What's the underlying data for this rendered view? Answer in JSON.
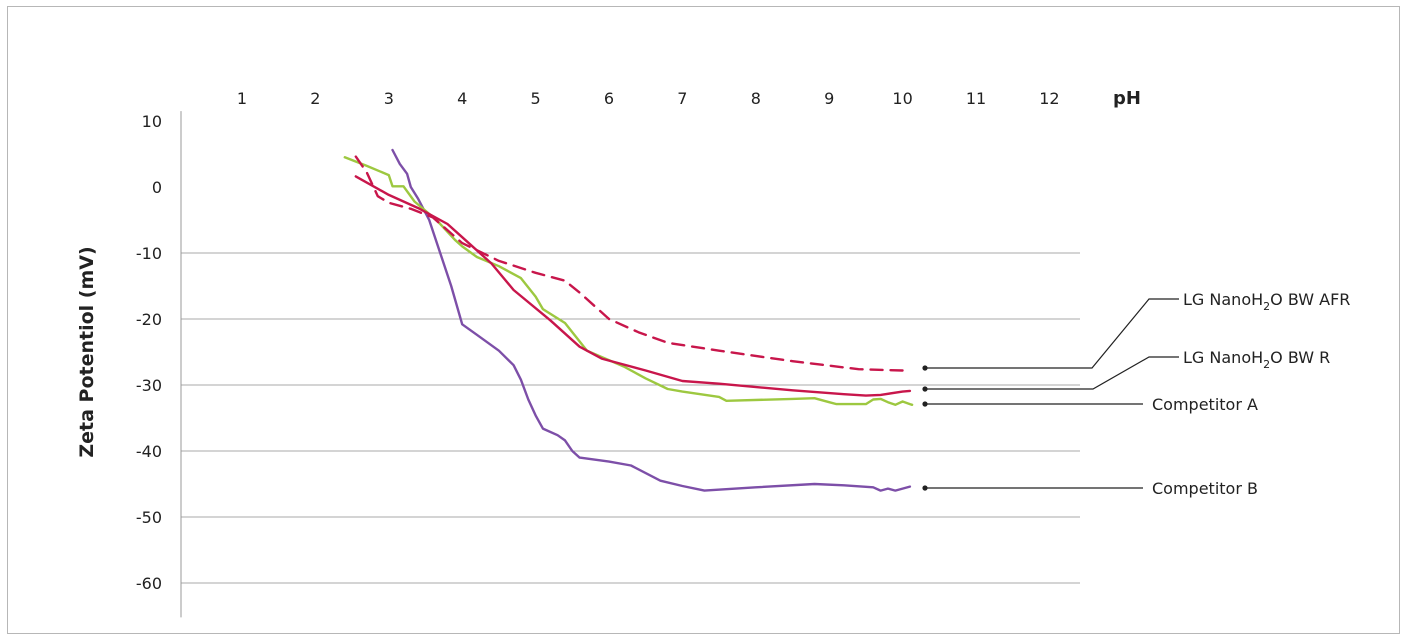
{
  "chart_data": {
    "type": "line",
    "title": "",
    "xlabel": "pH",
    "ylabel": "Zeta Potentiol (mV)",
    "x_ticks": [
      "1",
      "2",
      "3",
      "4",
      "5",
      "6",
      "7",
      "8",
      "9",
      "10",
      "11",
      "12"
    ],
    "y_ticks": [
      "10",
      "0",
      "-10",
      "-20",
      "-30",
      "-40",
      "-50",
      "-60"
    ],
    "xlim": [
      0.5,
      12.5
    ],
    "ylim": [
      -66,
      12
    ],
    "x_axis_position": "top",
    "grid": "horizontal",
    "legend_placement": "right, labels connected by leader lines",
    "series": [
      {
        "name": "LG NanoH₂O BW AFR",
        "name_parts": [
          "LG NanoH",
          "2",
          "O BW AFR"
        ],
        "color": "#c8164b",
        "style": "dashed",
        "points": [
          [
            2.55,
            4.6
          ],
          [
            2.7,
            2.2
          ],
          [
            2.85,
            -1.4
          ],
          [
            3.0,
            -2.4
          ],
          [
            3.3,
            -3.3
          ],
          [
            3.6,
            -4.6
          ],
          [
            4.0,
            -8.5
          ],
          [
            4.5,
            -11.2
          ],
          [
            5.0,
            -13.0
          ],
          [
            5.4,
            -14.2
          ],
          [
            5.6,
            -16.0
          ],
          [
            5.8,
            -18.0
          ],
          [
            6.0,
            -20.0
          ],
          [
            6.4,
            -22.0
          ],
          [
            6.8,
            -23.6
          ],
          [
            7.5,
            -24.8
          ],
          [
            8.5,
            -26.4
          ],
          [
            9.4,
            -27.6
          ],
          [
            10.0,
            -27.8
          ],
          [
            10.1,
            -27.8
          ]
        ]
      },
      {
        "name": "LG NanoH₂O BW R",
        "name_parts": [
          "LG NanoH",
          "2",
          "O BW R"
        ],
        "color": "#c8164b",
        "style": "solid",
        "points": [
          [
            2.55,
            1.6
          ],
          [
            3.0,
            -1.2
          ],
          [
            3.4,
            -3.2
          ],
          [
            3.8,
            -5.6
          ],
          [
            4.0,
            -7.6
          ],
          [
            4.4,
            -11.6
          ],
          [
            4.7,
            -15.6
          ],
          [
            5.2,
            -20.2
          ],
          [
            5.6,
            -24.2
          ],
          [
            5.9,
            -26.0
          ],
          [
            6.5,
            -27.8
          ],
          [
            7.0,
            -29.4
          ],
          [
            7.5,
            -29.8
          ],
          [
            8.5,
            -30.8
          ],
          [
            9.2,
            -31.4
          ],
          [
            9.5,
            -31.6
          ],
          [
            9.7,
            -31.5
          ],
          [
            10.0,
            -31.0
          ],
          [
            10.1,
            -30.9
          ]
        ]
      },
      {
        "name": "Competitor A",
        "color": "#9dc840",
        "style": "solid",
        "points": [
          [
            2.4,
            4.5
          ],
          [
            2.7,
            3.2
          ],
          [
            3.0,
            1.8
          ],
          [
            3.05,
            0.1
          ],
          [
            3.2,
            0.1
          ],
          [
            3.35,
            -2.2
          ],
          [
            3.65,
            -5.0
          ],
          [
            3.9,
            -8.0
          ],
          [
            4.0,
            -9.0
          ],
          [
            4.2,
            -10.6
          ],
          [
            4.5,
            -12.0
          ],
          [
            4.8,
            -13.8
          ],
          [
            5.0,
            -16.6
          ],
          [
            5.1,
            -18.5
          ],
          [
            5.4,
            -20.6
          ],
          [
            5.7,
            -24.8
          ],
          [
            6.2,
            -27.2
          ],
          [
            6.5,
            -29.0
          ],
          [
            6.8,
            -30.6
          ],
          [
            7.0,
            -31.0
          ],
          [
            7.5,
            -31.8
          ],
          [
            7.6,
            -32.4
          ],
          [
            8.5,
            -32.1
          ],
          [
            8.8,
            -32.0
          ],
          [
            9.0,
            -32.6
          ],
          [
            9.1,
            -32.9
          ],
          [
            9.5,
            -32.9
          ],
          [
            9.6,
            -32.2
          ],
          [
            9.7,
            -32.1
          ],
          [
            9.8,
            -32.6
          ],
          [
            9.9,
            -33.0
          ],
          [
            10.0,
            -32.5
          ],
          [
            10.1,
            -32.9
          ],
          [
            10.13,
            -33.0
          ]
        ]
      },
      {
        "name": "Competitor B",
        "color": "#7d4fa8",
        "style": "solid",
        "points": [
          [
            3.05,
            5.6
          ],
          [
            3.15,
            3.5
          ],
          [
            3.25,
            2.0
          ],
          [
            3.3,
            0.0
          ],
          [
            3.4,
            -1.8
          ],
          [
            3.55,
            -5.0
          ],
          [
            3.7,
            -10.0
          ],
          [
            3.85,
            -15.0
          ],
          [
            4.0,
            -20.8
          ],
          [
            4.2,
            -22.4
          ],
          [
            4.5,
            -24.8
          ],
          [
            4.7,
            -27.0
          ],
          [
            4.8,
            -29.2
          ],
          [
            4.9,
            -32.2
          ],
          [
            5.0,
            -34.6
          ],
          [
            5.1,
            -36.6
          ],
          [
            5.3,
            -37.6
          ],
          [
            5.4,
            -38.4
          ],
          [
            5.5,
            -40.0
          ],
          [
            5.6,
            -41.0
          ],
          [
            6.0,
            -41.6
          ],
          [
            6.3,
            -42.2
          ],
          [
            6.7,
            -44.5
          ],
          [
            7.0,
            -45.3
          ],
          [
            7.3,
            -46.0
          ],
          [
            8.0,
            -45.5
          ],
          [
            8.8,
            -45.0
          ],
          [
            9.2,
            -45.2
          ],
          [
            9.6,
            -45.5
          ],
          [
            9.7,
            -46.0
          ],
          [
            9.8,
            -45.7
          ],
          [
            9.9,
            -46.0
          ],
          [
            10.0,
            -45.7
          ],
          [
            10.1,
            -45.4
          ]
        ]
      }
    ]
  }
}
